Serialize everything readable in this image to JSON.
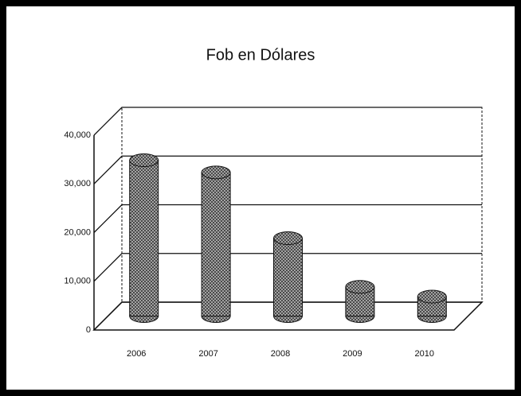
{
  "chart_data": {
    "type": "bar",
    "title": "Fob en Dólares",
    "categories": [
      "2006",
      "2007",
      "2008",
      "2009",
      "2010"
    ],
    "values": [
      32000,
      29500,
      16000,
      6000,
      4000
    ],
    "color": "#9a9a9a",
    "ylim": [
      0,
      40000
    ],
    "yticks": [
      0,
      {
        "value": 10000,
        "label": "10,000"
      },
      {
        "value": 20000,
        "label": "20,000"
      },
      {
        "value": 30000,
        "label": "30,000"
      },
      {
        "value": 40000,
        "label": "40,000"
      }
    ],
    "grid": true
  }
}
